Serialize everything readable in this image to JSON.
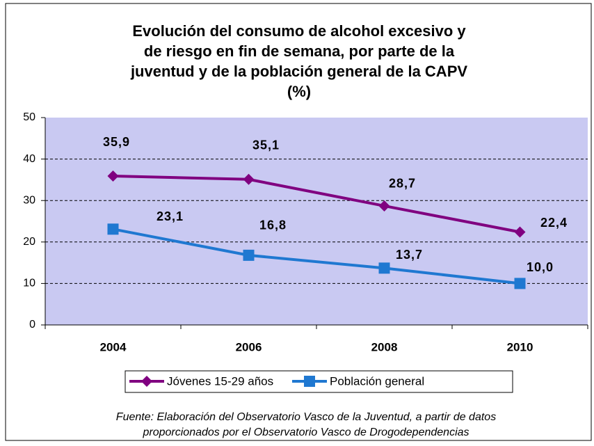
{
  "chart_data": {
    "type": "line",
    "title": [
      "Evolución del consumo de alcohol excesivo y",
      "de riesgo en fin de semana, por parte de la",
      "juventud y de la población general de la CAPV",
      "(%)"
    ],
    "categories": [
      "2004",
      "2006",
      "2008",
      "2010"
    ],
    "series": [
      {
        "name": "Jóvenes 15-29 años",
        "color": "#800080",
        "marker": "diamond",
        "values": [
          35.9,
          35.1,
          28.7,
          22.4
        ],
        "value_labels": [
          "35,9",
          "35,1",
          "28,7",
          "22,4"
        ]
      },
      {
        "name": "Población general",
        "color": "#1f78d1",
        "marker": "square",
        "values": [
          23.1,
          16.8,
          13.7,
          10.0
        ],
        "value_labels": [
          "23,1",
          "16,8",
          "13,7",
          "10,0"
        ]
      }
    ],
    "ylim": [
      0,
      50
    ],
    "yticks": [
      0,
      10,
      20,
      30,
      40,
      50
    ],
    "grid": true,
    "legend": "bottom",
    "source": [
      "Fuente: Elaboración del Observatorio Vasco de la Juventud, a partir de datos",
      "proporcionados por el Observatorio Vasco de Drogodependencias"
    ]
  }
}
